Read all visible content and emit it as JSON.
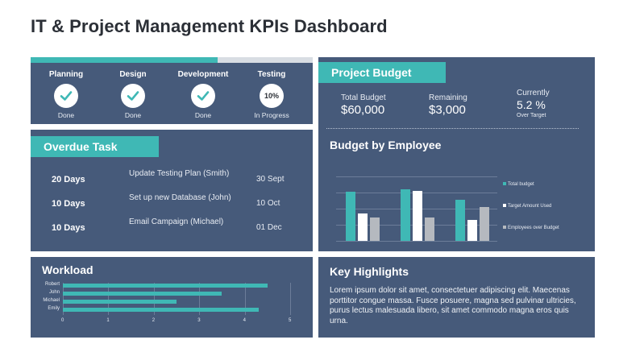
{
  "page": {
    "title": "IT & Project Management KPIs Dashboard"
  },
  "phases": [
    {
      "name": "Planning",
      "icon": "check-icon",
      "status": "Done"
    },
    {
      "name": "Design",
      "icon": "check-icon",
      "status": "Done"
    },
    {
      "name": "Development",
      "icon": "check-icon",
      "status": "Done"
    },
    {
      "name": "Testing",
      "value": "10%",
      "status": "In Progress"
    }
  ],
  "overdue": {
    "title": "Overdue Task",
    "rows": [
      {
        "days": "20 Days",
        "task": "Update Testing Plan (Smith)",
        "date": "30 Sept"
      },
      {
        "days": "10 Days",
        "task": "Set up new Database (John)",
        "date": "10 Oct"
      },
      {
        "days": "10 Days",
        "task": "Email Campaign (Michael)",
        "date": "01 Dec"
      }
    ]
  },
  "workload": {
    "title": "Workload",
    "names": [
      "Robert",
      "John",
      "Michael",
      "Emily"
    ],
    "values": [
      4.5,
      3.5,
      2.5,
      4.3
    ],
    "ticks": [
      "0",
      "1",
      "2",
      "3",
      "4",
      "5"
    ],
    "max": 5
  },
  "budget": {
    "title": "Project Budget",
    "total_label": "Total Budget",
    "total_value": "$60,000",
    "remaining_label": "Remaining",
    "remaining_value": "$3,000",
    "current_label": "Currently",
    "current_value": "5.2 %",
    "current_sub": "Over Target"
  },
  "chart_data": {
    "type": "bar",
    "title": "Budget by Employee",
    "categories": [
      "",
      "",
      ""
    ],
    "series": [
      {
        "name": "Total budget",
        "values": [
          3.8,
          4.0,
          3.2
        ]
      },
      {
        "name": "Target Amount Used",
        "values": [
          2.1,
          3.9,
          1.6
        ]
      },
      {
        "name": "Employees over Budget",
        "values": [
          1.8,
          1.8,
          2.6
        ]
      }
    ],
    "ylim": [
      0,
      5
    ],
    "legend": "right",
    "colors": [
      "#3fb8b5",
      "#ffffff",
      "#b5b9bf"
    ]
  },
  "highlights": {
    "title": "Key Highlights",
    "body": "Lorem ipsum dolor sit amet, consectetuer adipiscing elit. Maecenas porttitor congue massa. Fusce posuere, magna sed pulvinar ultricies, purus lectus malesuada libero, sit amet commodo magna eros quis urna."
  }
}
